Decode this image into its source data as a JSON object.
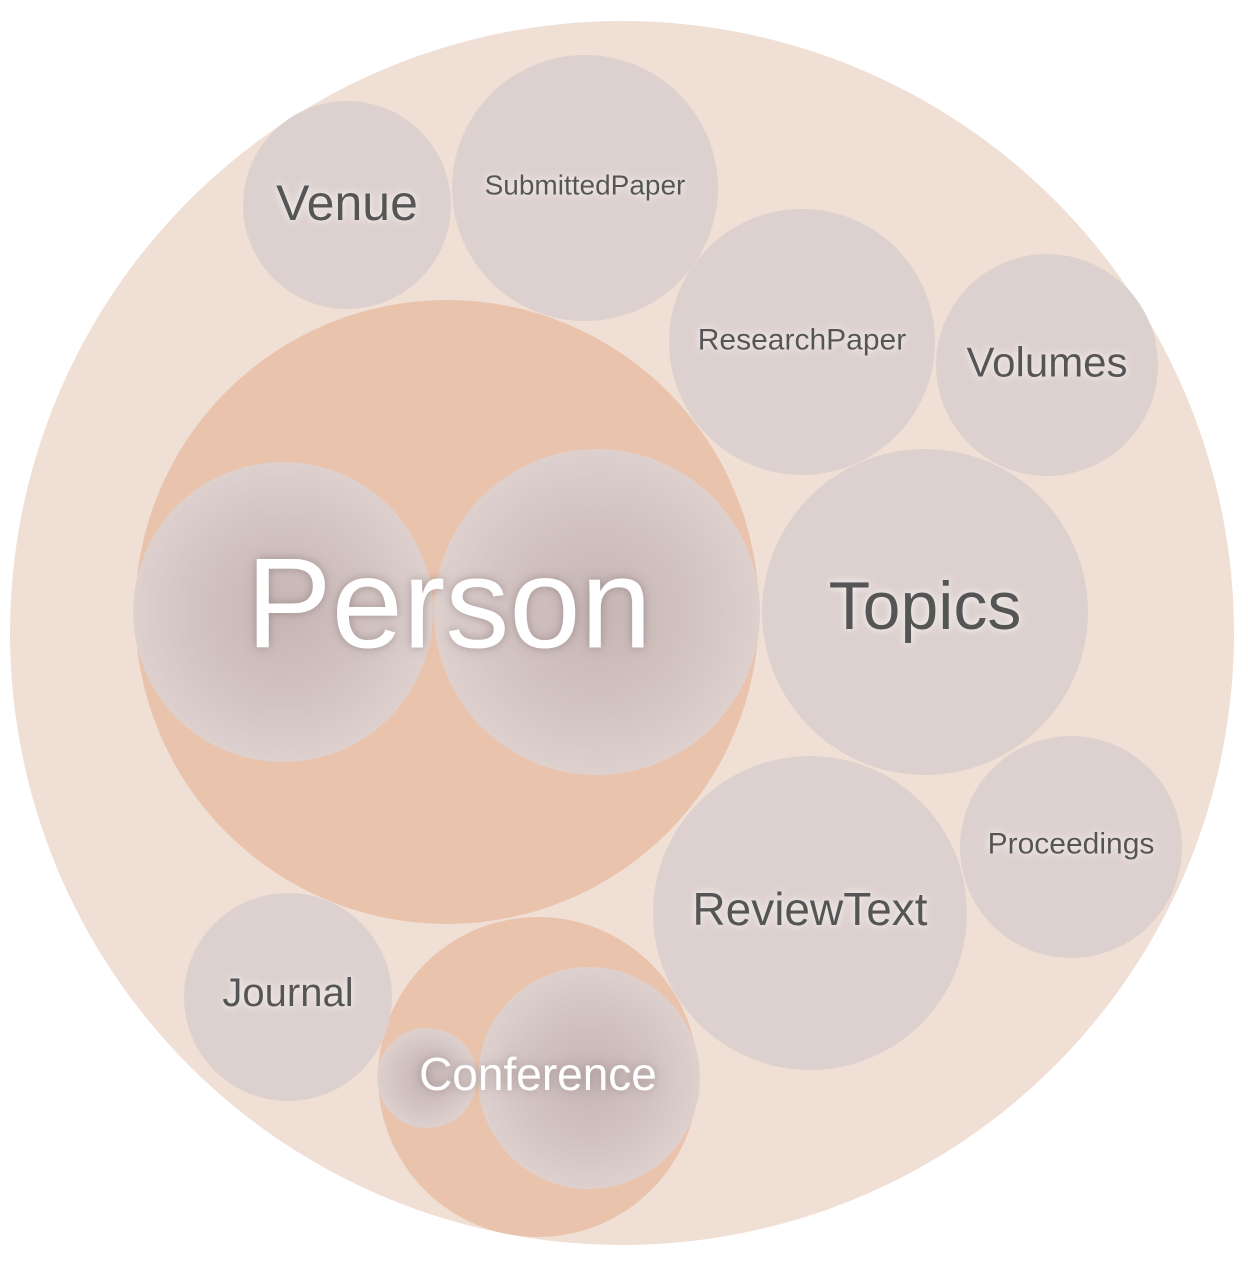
{
  "diagram": {
    "type": "circle-packing",
    "colors": {
      "root_fill": "#f0dfd4",
      "group_fill": "#eac3ad",
      "leaf_fill": "#ddd1cf",
      "label_dark": "#555555",
      "label_light": "#ffffff"
    },
    "nodes": {
      "person": {
        "label": "Person"
      },
      "conference": {
        "label": "Conference"
      },
      "venue": {
        "label": "Venue"
      },
      "submitted_paper": {
        "label": "SubmittedPaper"
      },
      "research_paper": {
        "label": "ResearchPaper"
      },
      "volumes": {
        "label": "Volumes"
      },
      "topics": {
        "label": "Topics"
      },
      "proceedings": {
        "label": "Proceedings"
      },
      "review_text": {
        "label": "ReviewText"
      },
      "journal": {
        "label": "Journal"
      }
    }
  }
}
